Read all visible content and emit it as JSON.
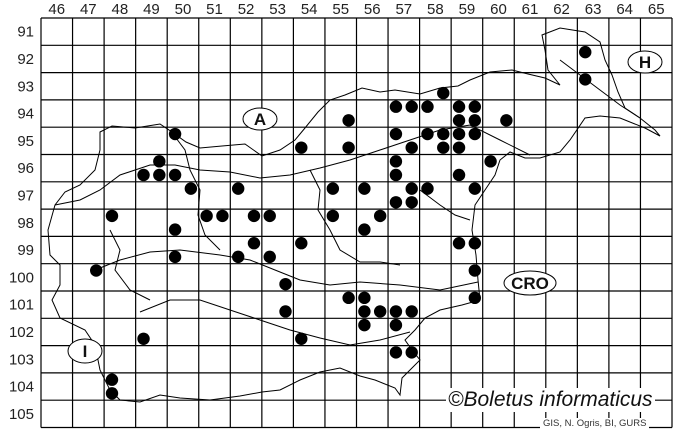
{
  "map": {
    "grid_columns": [
      "46",
      "47",
      "48",
      "49",
      "50",
      "51",
      "52",
      "53",
      "54",
      "55",
      "56",
      "57",
      "58",
      "59",
      "60",
      "61",
      "62",
      "63",
      "64",
      "65"
    ],
    "grid_rows": [
      "91",
      "92",
      "93",
      "94",
      "95",
      "96",
      "97",
      "98",
      "99",
      "100",
      "101",
      "102",
      "103",
      "104",
      "105"
    ],
    "region_labels": {
      "austria": "A",
      "hungary": "H",
      "croatia": "CRO",
      "italy": "I"
    },
    "dot_color": "#000000",
    "occurrences": [
      [
        50.25,
        95.25
      ],
      [
        49.75,
        96.25
      ],
      [
        49.25,
        96.75
      ],
      [
        49.75,
        96.75
      ],
      [
        50.25,
        96.75
      ],
      [
        50.75,
        97.25
      ],
      [
        52.25,
        97.25
      ],
      [
        48.25,
        98.25
      ],
      [
        51.25,
        98.25
      ],
      [
        51.75,
        98.25
      ],
      [
        52.75,
        98.25
      ],
      [
        53.25,
        98.25
      ],
      [
        50.25,
        98.75
      ],
      [
        52.75,
        99.25
      ],
      [
        54.25,
        99.25
      ],
      [
        50.25,
        99.75
      ],
      [
        52.25,
        99.75
      ],
      [
        53.25,
        99.75
      ],
      [
        47.75,
        100.25
      ],
      [
        53.75,
        100.75
      ],
      [
        53.75,
        101.75
      ],
      [
        49.25,
        102.75
      ],
      [
        54.25,
        102.75
      ],
      [
        48.25,
        104.25
      ],
      [
        48.25,
        104.75
      ],
      [
        54.25,
        95.75
      ],
      [
        55.75,
        94.75
      ],
      [
        55.75,
        95.75
      ],
      [
        55.25,
        97.25
      ],
      [
        56.25,
        97.25
      ],
      [
        57.75,
        97.25
      ],
      [
        58.25,
        97.25
      ],
      [
        59.75,
        97.25
      ],
      [
        57.25,
        97.75
      ],
      [
        57.75,
        97.75
      ],
      [
        55.25,
        98.25
      ],
      [
        56.75,
        98.25
      ],
      [
        56.25,
        98.75
      ],
      [
        59.25,
        99.25
      ],
      [
        59.75,
        99.25
      ],
      [
        59.75,
        100.25
      ],
      [
        59.75,
        101.25
      ],
      [
        55.75,
        101.25
      ],
      [
        56.25,
        101.25
      ],
      [
        56.25,
        101.75
      ],
      [
        56.75,
        101.75
      ],
      [
        57.25,
        101.75
      ],
      [
        57.75,
        101.75
      ],
      [
        56.25,
        102.25
      ],
      [
        57.25,
        102.25
      ],
      [
        57.25,
        103.25
      ],
      [
        57.75,
        103.25
      ],
      [
        58.75,
        93.75
      ],
      [
        57.25,
        94.25
      ],
      [
        57.75,
        94.25
      ],
      [
        58.25,
        94.25
      ],
      [
        59.25,
        94.25
      ],
      [
        59.75,
        94.25
      ],
      [
        59.25,
        94.75
      ],
      [
        59.75,
        94.75
      ],
      [
        60.75,
        94.75
      ],
      [
        57.25,
        95.25
      ],
      [
        58.25,
        95.25
      ],
      [
        58.75,
        95.25
      ],
      [
        59.25,
        95.25
      ],
      [
        59.75,
        95.25
      ],
      [
        57.75,
        95.75
      ],
      [
        58.75,
        95.75
      ],
      [
        59.25,
        95.75
      ],
      [
        57.25,
        96.25
      ],
      [
        60.25,
        96.25
      ],
      [
        57.25,
        96.75
      ],
      [
        59.25,
        96.75
      ],
      [
        63.25,
        92.25
      ],
      [
        63.25,
        93.25
      ]
    ]
  },
  "copyright": "©Boletus informaticus",
  "credits": "GIS, N. Ogris, BI, GURS"
}
